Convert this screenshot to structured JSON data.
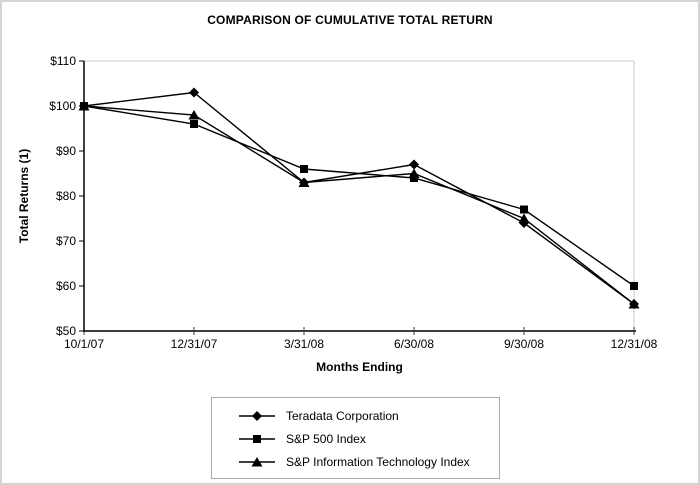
{
  "chart_data": {
    "type": "line",
    "title": "COMPARISON OF CUMULATIVE TOTAL RETURN",
    "xlabel": "Months Ending",
    "ylabel": "Total Returns (1)",
    "categories": [
      "10/1/07",
      "12/31/07",
      "3/31/08",
      "6/30/08",
      "9/30/08",
      "12/31/08"
    ],
    "series": [
      {
        "name": "Teradata Corporation",
        "marker": "diamond",
        "color": "#000000",
        "values": [
          100,
          103,
          83,
          87,
          74,
          56
        ]
      },
      {
        "name": "S&P 500 Index",
        "marker": "square",
        "color": "#000000",
        "values": [
          100,
          96,
          86,
          84,
          77,
          60
        ]
      },
      {
        "name": "S&P Information Technology Index",
        "marker": "triangle",
        "color": "#000000",
        "values": [
          100,
          98,
          83,
          85,
          75,
          56
        ]
      }
    ],
    "ylim": [
      50,
      110
    ],
    "ytick_step": 10,
    "ytick_labels": [
      "$50",
      "$60",
      "$70",
      "$80",
      "$90",
      "$100",
      "$110"
    ],
    "grid": false,
    "legend_position": "bottom"
  },
  "colors": {
    "series_line": "#000000",
    "marker_fill": "#000000",
    "y_axis": "#000000",
    "x_axis": "#3d3d3d",
    "plot_top_right_border": "#c9c9c9",
    "tick_label": "#000000",
    "legend_border": "#ababab",
    "frame_border": "#d4d4d4",
    "background": "#ffffff"
  }
}
